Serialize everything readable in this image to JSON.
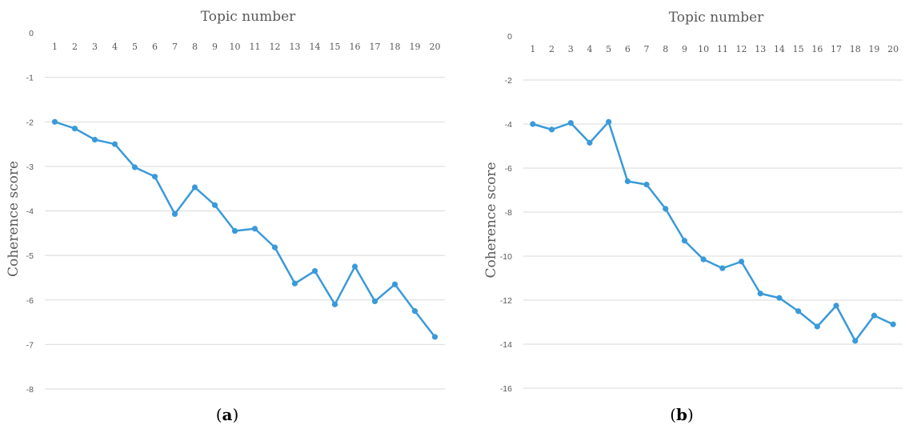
{
  "colors": {
    "series": "#3a9ad9",
    "grid": "#d9d9d9",
    "text": "#595959"
  },
  "panels": [
    {
      "caption_letter": "a"
    },
    {
      "caption_letter": "b"
    }
  ],
  "chart_data": [
    {
      "type": "line",
      "xlabel": "Topic number",
      "ylabel": "Coherence score",
      "x": [
        1,
        2,
        3,
        4,
        5,
        6,
        7,
        8,
        9,
        10,
        11,
        12,
        13,
        14,
        15,
        16,
        17,
        18,
        19,
        20
      ],
      "ylim": [
        -8,
        0
      ],
      "yticks": [
        0,
        -1,
        -2,
        -3,
        -4,
        -5,
        -6,
        -7,
        -8
      ],
      "grid": true,
      "xaxis_position": "top",
      "series": [
        {
          "values": [
            -2.0,
            -2.15,
            -2.4,
            -2.5,
            -3.02,
            -3.23,
            -4.07,
            -3.47,
            -3.87,
            -4.45,
            -4.4,
            -4.82,
            -5.63,
            -5.35,
            -6.1,
            -5.25,
            -6.03,
            -5.65,
            -6.25,
            -6.83
          ]
        }
      ]
    },
    {
      "type": "line",
      "xlabel": "Topic number",
      "ylabel": "Coherence score",
      "x": [
        1,
        2,
        3,
        4,
        5,
        6,
        7,
        8,
        9,
        10,
        11,
        12,
        13,
        14,
        15,
        16,
        17,
        18,
        19,
        20
      ],
      "ylim": [
        -16,
        0
      ],
      "yticks": [
        0,
        -2,
        -4,
        -6,
        -8,
        -10,
        -12,
        -14,
        -16
      ],
      "grid": true,
      "xaxis_position": "top",
      "series": [
        {
          "values": [
            -4.0,
            -4.25,
            -3.95,
            -4.85,
            -3.9,
            -6.6,
            -6.75,
            -7.85,
            -9.3,
            -10.15,
            -10.55,
            -10.25,
            -11.7,
            -11.9,
            -12.5,
            -13.2,
            -12.25,
            -13.85,
            -12.7,
            -13.1
          ]
        }
      ]
    }
  ]
}
